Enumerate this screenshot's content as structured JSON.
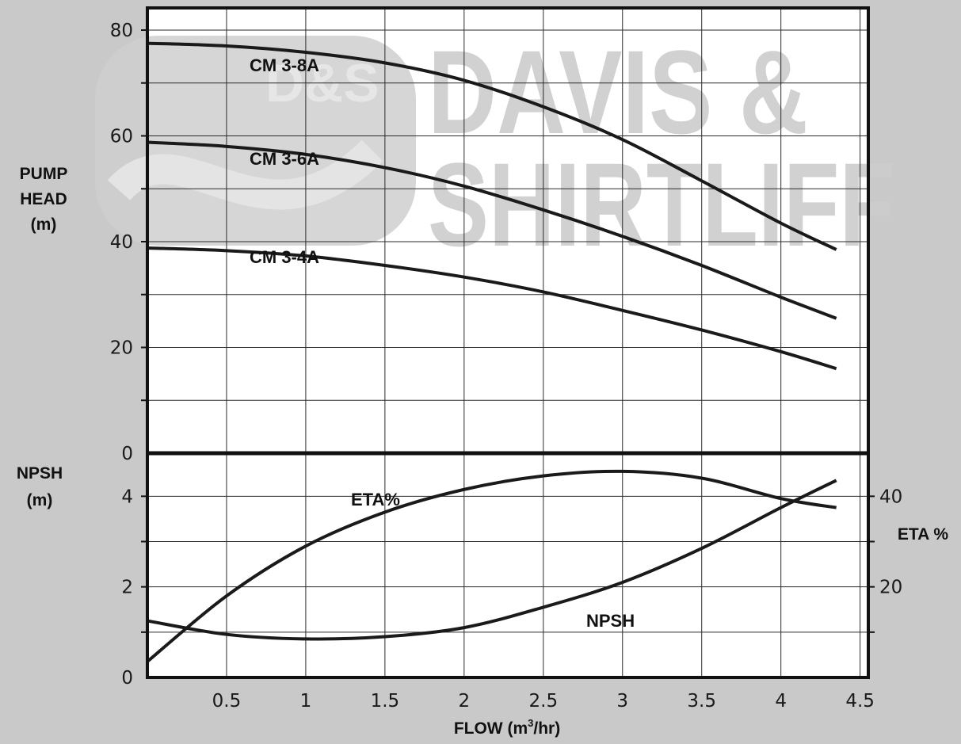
{
  "watermark": {
    "line1": "DAVIS &",
    "line2": "SHIRTLIFF",
    "badge": "D&S"
  },
  "labels": {
    "ylabel_top": [
      "PUMP",
      "HEAD",
      "(m)"
    ],
    "ylabel_bottom": [
      "NPSH",
      "(m)"
    ],
    "ylabel_right": "ETA %",
    "xlabel": "FLOW (m",
    "xlabel_sup": "3",
    "xlabel_end": "/hr)"
  },
  "colors": {
    "background": "#c9c9c9",
    "plot": "#ffffff",
    "line": "#1a1a1a",
    "watermark": "#cdcdcd"
  },
  "chart_data": [
    {
      "type": "line",
      "panel": "head",
      "xlim": [
        0,
        4.5
      ],
      "ylim": [
        0,
        90
      ],
      "x_ticks": [
        "0.5",
        "1",
        "1.5",
        "2",
        "2.5",
        "3",
        "3.5",
        "4",
        "4.5"
      ],
      "y_ticks": [
        "0",
        "20",
        "40",
        "60",
        "80"
      ],
      "grid": true,
      "series": [
        {
          "name": "CM 3-8A",
          "x": [
            0,
            0.5,
            1,
            1.5,
            2,
            2.5,
            3,
            3.5,
            4,
            4.35
          ],
          "values": [
            77.5,
            77,
            75.8,
            73.8,
            70.5,
            65.5,
            59.3,
            51.5,
            43.5,
            38.5
          ]
        },
        {
          "name": "CM 3-6A",
          "x": [
            0,
            0.5,
            1,
            1.5,
            2,
            2.5,
            3,
            3.5,
            4,
            4.35
          ],
          "values": [
            58.8,
            58,
            56.5,
            54,
            50.5,
            46,
            41,
            35.5,
            29.5,
            25.5
          ]
        },
        {
          "name": "CM 3-4A",
          "x": [
            0,
            0.5,
            1,
            1.5,
            2,
            2.5,
            3,
            3.5,
            4,
            4.35
          ],
          "values": [
            38.8,
            38.3,
            37.3,
            35.5,
            33.3,
            30.5,
            27,
            23.3,
            19.2,
            16
          ]
        }
      ]
    },
    {
      "type": "line",
      "panel": "npsh_eta",
      "xlim": [
        0,
        4.5
      ],
      "ylim_left": [
        0,
        5
      ],
      "ylim_right": [
        0,
        50
      ],
      "y_ticks_left": [
        "0",
        "2",
        "4"
      ],
      "y_ticks_right": [
        "20",
        "40"
      ],
      "grid": true,
      "series": [
        {
          "name": "ETA%",
          "axis": "right",
          "x": [
            0,
            0.5,
            1,
            1.5,
            2,
            2.5,
            3,
            3.5,
            4,
            4.35
          ],
          "values": [
            3.5,
            18,
            29,
            36.5,
            41.5,
            44.5,
            45.5,
            44,
            39.5,
            37.5
          ]
        },
        {
          "name": "NPSH",
          "axis": "left",
          "x": [
            0,
            0.5,
            1,
            1.5,
            2,
            2.5,
            3,
            3.5,
            4,
            4.35
          ],
          "values": [
            1.25,
            0.95,
            0.85,
            0.9,
            1.1,
            1.55,
            2.1,
            2.85,
            3.75,
            4.35
          ]
        }
      ]
    }
  ]
}
